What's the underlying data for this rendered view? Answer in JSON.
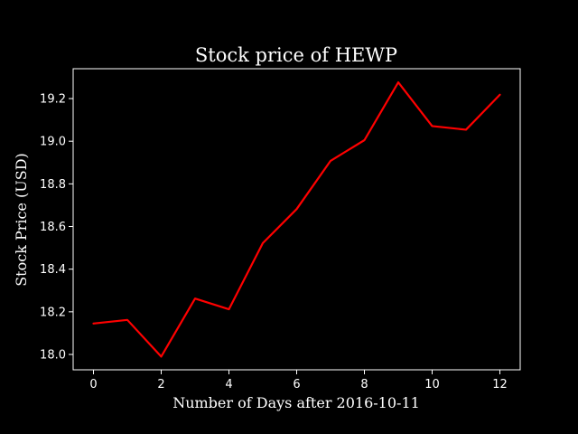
{
  "chart_data": {
    "type": "line",
    "title": "Stock price of HEWP",
    "xlabel": "Number of Days after 2016-10-11",
    "ylabel": "Stock Price (USD)",
    "x": [
      0,
      1,
      2,
      3,
      4,
      5,
      6,
      7,
      8,
      9,
      10,
      11,
      12
    ],
    "series": [
      {
        "values": [
          18.145,
          18.162,
          17.99,
          18.262,
          18.212,
          18.522,
          18.682,
          18.908,
          19.005,
          19.276,
          19.071,
          19.054,
          19.218
        ],
        "color": "#ff0000"
      }
    ],
    "xlim": [
      -0.6,
      12.6
    ],
    "ylim": [
      17.928,
      19.34
    ],
    "xticks": [
      "0",
      "2",
      "4",
      "6",
      "8",
      "10",
      "12"
    ],
    "yticks": [
      "18.0",
      "18.2",
      "18.4",
      "18.6",
      "18.8",
      "19.0",
      "19.2"
    ],
    "grid": false,
    "background": "#000000",
    "axis_color": "#ffffff"
  }
}
